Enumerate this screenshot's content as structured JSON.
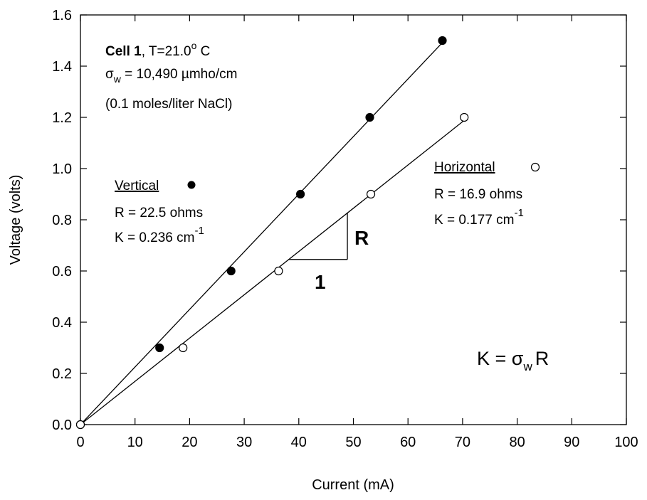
{
  "chart_data": {
    "type": "scatter",
    "xlabel": "Current (mA)",
    "ylabel": "Voltage (volts)",
    "xlim": [
      0,
      100
    ],
    "ylim": [
      0,
      1.6
    ],
    "x_ticks": [
      "0",
      "10",
      "20",
      "30",
      "40",
      "50",
      "60",
      "70",
      "80",
      "90",
      "100"
    ],
    "y_ticks": [
      "0.0",
      "0.2",
      "0.4",
      "0.6",
      "0.8",
      "1.0",
      "1.2",
      "1.4",
      "1.6"
    ],
    "grid": false,
    "series": [
      {
        "name": "Vertical",
        "marker": "filled-circle",
        "color": "#000000",
        "x": [
          0,
          14.5,
          27.6,
          40.3,
          53.0,
          66.3
        ],
        "y": [
          0,
          0.3,
          0.6,
          0.9,
          1.2,
          1.5
        ],
        "fit": {
          "slope_V_per_mA": 0.0225,
          "x_end": 66.3
        }
      },
      {
        "name": "Horizontal",
        "marker": "open-circle",
        "color": "#000000",
        "x": [
          0,
          18.8,
          36.3,
          53.2,
          70.3
        ],
        "y": [
          0,
          0.3,
          0.6,
          0.9,
          1.2
        ],
        "fit": {
          "slope_V_per_mA": 0.0169,
          "x_end": 70.3
        }
      }
    ],
    "annotations": {
      "cell": {
        "bold": "Cell 1",
        "rest": ", T=21.0",
        "degree": "o",
        "unit": " C",
        "sigma_symbol": "σ",
        "sigma_sub": "w",
        "sigma_value": " = 10,490 µmho/cm",
        "solution": "(0.1 moles/liter NaCl)"
      },
      "vertical": {
        "title": "Vertical",
        "r_text": "R = 22.5 ohms",
        "k_text": "K = 0.236 cm",
        "k_exp": "-1"
      },
      "horizontal": {
        "title": "Horizontal",
        "r_text": "R = 16.9 ohms",
        "k_text": "K = 0.177 cm",
        "k_exp": "-1"
      },
      "slope_triangle": {
        "rise_label": "R",
        "run_label": "1",
        "x0": 38.1,
        "x1": 48.9,
        "y0": 0.645,
        "y1": 0.828
      },
      "formula": {
        "lhs": "K = ",
        "sigma": "σ",
        "sub": "w",
        "rhs": "R"
      }
    }
  }
}
